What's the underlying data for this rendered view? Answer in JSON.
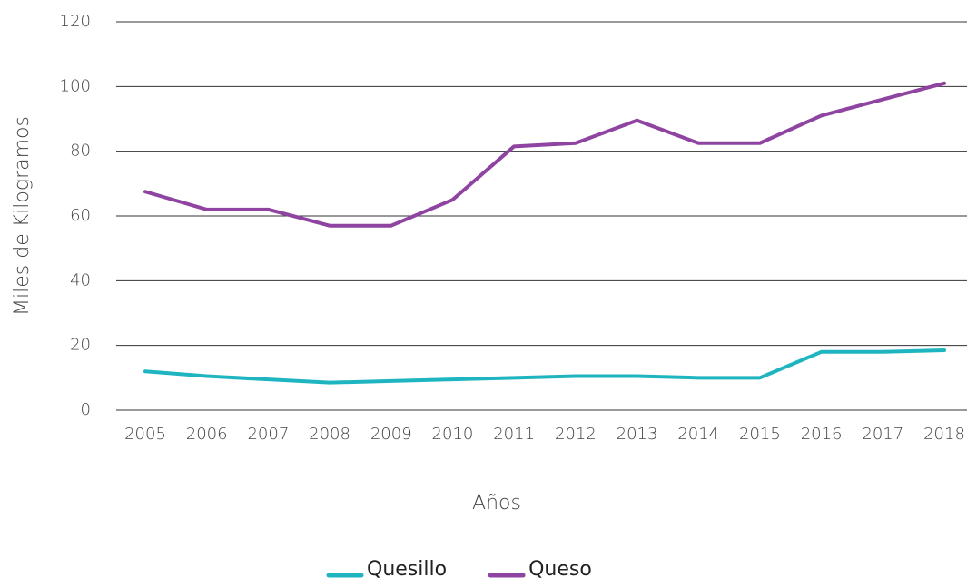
{
  "chart_data": {
    "type": "line",
    "xlabel": "Años",
    "ylabel": "Miles de Kilogramos",
    "categories": [
      "2005",
      "2006",
      "2007",
      "2008",
      "2009",
      "2010",
      "2011",
      "2012",
      "2013",
      "2014",
      "2015",
      "2016",
      "2017",
      "2018"
    ],
    "series": [
      {
        "name": "Quesillo",
        "color": "#1fb5c0",
        "values": [
          12,
          10.5,
          9.5,
          8.5,
          9,
          9.5,
          10,
          10.5,
          10.5,
          10,
          10,
          18,
          18,
          18.5
        ]
      },
      {
        "name": "Queso",
        "color": "#8e44a0",
        "values": [
          67.5,
          62,
          62,
          57,
          57,
          65,
          81.5,
          82.5,
          89.5,
          82.5,
          82.5,
          91,
          96,
          101
        ]
      }
    ],
    "ylim": [
      0,
      120
    ],
    "yticks": [
      0,
      20,
      40,
      60,
      80,
      100,
      120
    ],
    "grid": true,
    "legend": "bottom"
  }
}
